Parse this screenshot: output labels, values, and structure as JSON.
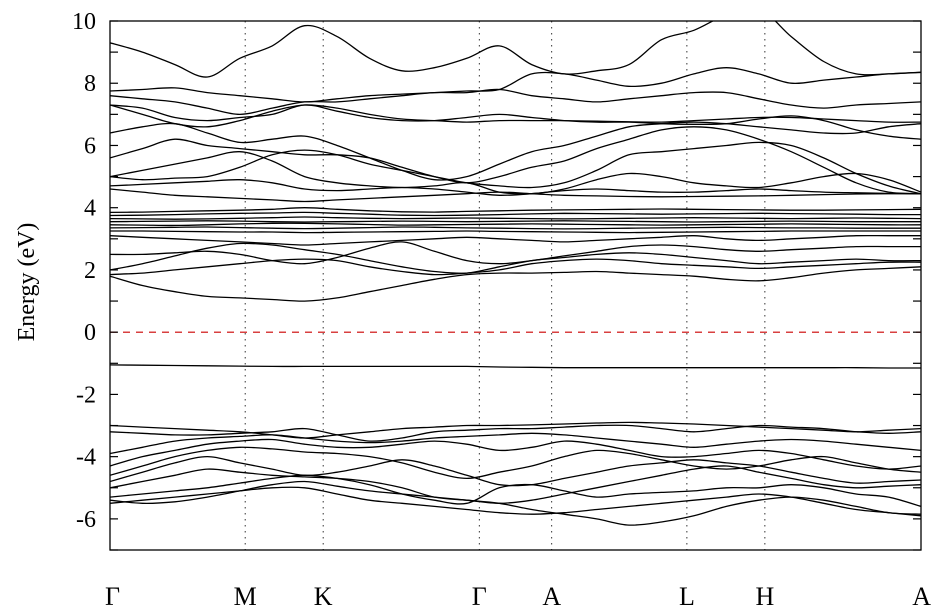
{
  "chart_data": {
    "type": "line",
    "title": "",
    "ylabel": "Energy (eV)",
    "xlabel": "",
    "ylim": [
      -7,
      10
    ],
    "yticks": [
      10,
      8,
      6,
      4,
      2,
      0,
      -2,
      -4,
      -6
    ],
    "ytick_labels": [
      "10",
      "8",
      "6",
      "4",
      "2",
      "0",
      "-2",
      "-4",
      "-6"
    ],
    "kpoints": [
      {
        "label": "Γ",
        "x": 0
      },
      {
        "label": "M",
        "x": 1.0
      },
      {
        "label": "K",
        "x": 1.577
      },
      {
        "label": "Γ",
        "x": 2.732
      },
      {
        "label": "A",
        "x": 3.268
      },
      {
        "label": "L",
        "x": 4.268
      },
      {
        "label": "H",
        "x": 4.845
      },
      {
        "label": "A",
        "x": 6.0
      }
    ],
    "fermi_level": 0,
    "fermi_color": "#cc0000",
    "line_color": "#000000",
    "grid": "dotted vertical lines at high-symmetry points",
    "series": [
      {
        "values": [
          -5.5,
          -5.4,
          -5.3,
          -5.2,
          -5.1,
          -5.0,
          -5.0,
          -5.2,
          -5.4,
          -5.5,
          -5.6,
          -5.7,
          -5.8,
          -5.85,
          -5.8,
          -5.7,
          -5.6,
          -5.5,
          -5.4,
          -5.3,
          -5.2,
          -5.3,
          -5.5,
          -5.7,
          -5.8,
          -5.9
        ]
      },
      {
        "values": [
          -5.4,
          -5.5,
          -5.45,
          -5.3,
          -5.1,
          -4.9,
          -4.8,
          -4.95,
          -5.1,
          -5.2,
          -5.3,
          -5.4,
          -5.5,
          -5.7,
          -5.85,
          -6.0,
          -6.2,
          -6.1,
          -5.9,
          -5.6,
          -5.4,
          -5.3,
          -5.4,
          -5.6,
          -5.8,
          -5.85
        ]
      },
      {
        "values": [
          -5.3,
          -5.2,
          -5.1,
          -5.0,
          -4.85,
          -4.7,
          -4.6,
          -4.7,
          -4.9,
          -5.2,
          -5.4,
          -5.5,
          -5.0,
          -4.9,
          -5.1,
          -5.3,
          -5.2,
          -5.15,
          -5.1,
          -5.0,
          -5.0,
          -4.9,
          -5.0,
          -5.2,
          -5.3,
          -5.6
        ]
      },
      {
        "values": [
          -5.0,
          -4.8,
          -4.6,
          -4.4,
          -4.5,
          -4.6,
          -4.65,
          -4.7,
          -4.8,
          -5.0,
          -5.3,
          -5.4,
          -5.5,
          -5.4,
          -5.2,
          -5.0,
          -4.8,
          -4.6,
          -4.4,
          -4.3,
          -4.5,
          -4.7,
          -4.9,
          -5.0,
          -4.95,
          -4.9
        ]
      },
      {
        "values": [
          -4.8,
          -4.5,
          -4.2,
          -4.0,
          -4.2,
          -4.4,
          -4.6,
          -4.5,
          -4.3,
          -4.1,
          -4.3,
          -4.6,
          -4.9,
          -4.9,
          -4.7,
          -4.5,
          -4.3,
          -4.2,
          -4.1,
          -4.2,
          -4.3,
          -4.5,
          -4.7,
          -4.85,
          -4.8,
          -4.75
        ]
      },
      {
        "values": [
          -4.6,
          -4.3,
          -4.0,
          -3.8,
          -3.7,
          -3.75,
          -3.85,
          -3.9,
          -4.0,
          -4.2,
          -4.5,
          -4.7,
          -4.5,
          -4.3,
          -4.0,
          -3.8,
          -3.9,
          -4.1,
          -4.3,
          -4.4,
          -4.3,
          -4.1,
          -4.0,
          -4.2,
          -4.4,
          -4.5
        ]
      },
      {
        "values": [
          -4.3,
          -4.0,
          -3.8,
          -3.6,
          -3.5,
          -3.45,
          -3.6,
          -3.7,
          -3.7,
          -3.6,
          -3.5,
          -3.6,
          -3.8,
          -3.7,
          -3.5,
          -3.6,
          -3.8,
          -4.0,
          -4.0,
          -3.9,
          -3.8,
          -3.9,
          -4.1,
          -4.3,
          -4.4,
          -4.3
        ]
      },
      {
        "values": [
          -3.9,
          -3.7,
          -3.5,
          -3.4,
          -3.35,
          -3.3,
          -3.4,
          -3.5,
          -3.55,
          -3.5,
          -3.4,
          -3.35,
          -3.3,
          -3.25,
          -3.3,
          -3.4,
          -3.5,
          -3.6,
          -3.7,
          -3.6,
          -3.5,
          -3.45,
          -3.5,
          -3.6,
          -3.7,
          -3.8
        ]
      },
      {
        "values": [
          -3.2,
          -3.25,
          -3.3,
          -3.3,
          -3.25,
          -3.2,
          -3.1,
          -3.3,
          -3.5,
          -3.4,
          -3.2,
          -3.15,
          -3.1,
          -3.1,
          -3.05,
          -3.0,
          -3.0,
          -3.1,
          -3.2,
          -3.1,
          -3.0,
          -3.05,
          -3.1,
          -3.2,
          -3.25,
          -3.2
        ]
      },
      {
        "values": [
          -3.0,
          -3.05,
          -3.1,
          -3.15,
          -3.2,
          -3.3,
          -3.4,
          -3.3,
          -3.2,
          -3.1,
          -3.05,
          -3.0,
          -3.0,
          -2.98,
          -2.95,
          -2.92,
          -2.9,
          -2.92,
          -2.95,
          -3.0,
          -3.05,
          -3.1,
          -3.15,
          -3.2,
          -3.15,
          -3.1
        ]
      },
      {
        "values": [
          -1.05,
          -1.06,
          -1.07,
          -1.08,
          -1.09,
          -1.1,
          -1.1,
          -1.1,
          -1.1,
          -1.1,
          -1.1,
          -1.1,
          -1.12,
          -1.13,
          -1.14,
          -1.14,
          -1.14,
          -1.14,
          -1.14,
          -1.14,
          -1.14,
          -1.14,
          -1.14,
          -1.14,
          -1.15,
          -1.15
        ]
      },
      {
        "values": [
          1.8,
          1.5,
          1.3,
          1.15,
          1.1,
          1.05,
          1.0,
          1.1,
          1.3,
          1.5,
          1.7,
          1.85,
          1.9,
          1.9,
          1.92,
          1.95,
          1.9,
          1.85,
          1.8,
          1.7,
          1.65,
          1.75,
          1.9,
          2.0,
          2.05,
          2.1
        ]
      },
      {
        "values": [
          1.85,
          1.9,
          2.0,
          2.1,
          2.2,
          2.3,
          2.35,
          2.3,
          2.1,
          1.95,
          1.85,
          1.9,
          2.0,
          2.2,
          2.3,
          2.35,
          2.3,
          2.2,
          2.15,
          2.1,
          2.05,
          2.1,
          2.15,
          2.2,
          2.25,
          2.25
        ]
      },
      {
        "values": [
          2.0,
          2.2,
          2.45,
          2.7,
          2.85,
          2.8,
          2.65,
          2.5,
          2.3,
          2.1,
          1.95,
          1.9,
          2.1,
          2.3,
          2.4,
          2.5,
          2.55,
          2.5,
          2.4,
          2.3,
          2.2,
          2.25,
          2.3,
          2.35,
          2.3,
          2.3
        ]
      },
      {
        "values": [
          2.5,
          2.5,
          2.55,
          2.6,
          2.5,
          2.3,
          2.2,
          2.4,
          2.7,
          2.9,
          2.6,
          2.3,
          2.2,
          2.3,
          2.45,
          2.6,
          2.75,
          2.8,
          2.75,
          2.65,
          2.6,
          2.65,
          2.7,
          2.75,
          2.75,
          2.75
        ]
      },
      {
        "values": [
          3.1,
          3.05,
          3.0,
          2.95,
          2.9,
          2.85,
          2.8,
          2.85,
          2.9,
          2.95,
          3.0,
          3.05,
          3.0,
          2.95,
          2.9,
          2.95,
          3.0,
          3.05,
          3.1,
          3.0,
          2.95,
          3.0,
          3.05,
          3.1,
          3.1,
          3.1
        ]
      },
      {
        "values": [
          3.25,
          3.25,
          3.24,
          3.23,
          3.22,
          3.22,
          3.2,
          3.21,
          3.22,
          3.23,
          3.24,
          3.25,
          3.24,
          3.23,
          3.22,
          3.21,
          3.2,
          3.21,
          3.22,
          3.23,
          3.24,
          3.25,
          3.25,
          3.25,
          3.25,
          3.25
        ]
      },
      {
        "values": [
          3.35,
          3.36,
          3.37,
          3.38,
          3.36,
          3.34,
          3.33,
          3.34,
          3.36,
          3.38,
          3.37,
          3.35,
          3.34,
          3.33,
          3.32,
          3.33,
          3.34,
          3.35,
          3.36,
          3.37,
          3.36,
          3.35,
          3.35,
          3.34,
          3.34,
          3.34
        ]
      },
      {
        "values": [
          3.45,
          3.44,
          3.43,
          3.45,
          3.48,
          3.5,
          3.5,
          3.48,
          3.46,
          3.44,
          3.45,
          3.46,
          3.47,
          3.48,
          3.47,
          3.46,
          3.45,
          3.44,
          3.45,
          3.46,
          3.47,
          3.48,
          3.47,
          3.46,
          3.45,
          3.45
        ]
      },
      {
        "values": [
          3.55,
          3.56,
          3.57,
          3.58,
          3.57,
          3.55,
          3.54,
          3.55,
          3.56,
          3.57,
          3.56,
          3.55,
          3.56,
          3.57,
          3.58,
          3.57,
          3.56,
          3.55,
          3.54,
          3.55,
          3.56,
          3.57,
          3.56,
          3.55,
          3.55,
          3.55
        ]
      },
      {
        "values": [
          3.65,
          3.64,
          3.63,
          3.64,
          3.66,
          3.68,
          3.7,
          3.68,
          3.66,
          3.65,
          3.66,
          3.67,
          3.66,
          3.65,
          3.64,
          3.65,
          3.66,
          3.67,
          3.68,
          3.67,
          3.66,
          3.65,
          3.66,
          3.67,
          3.66,
          3.65
        ]
      },
      {
        "values": [
          3.75,
          3.76,
          3.78,
          3.8,
          3.82,
          3.83,
          3.85,
          3.82,
          3.79,
          3.76,
          3.75,
          3.76,
          3.78,
          3.8,
          3.82,
          3.81,
          3.8,
          3.79,
          3.8,
          3.81,
          3.82,
          3.81,
          3.8,
          3.79,
          3.78,
          3.78
        ]
      },
      {
        "values": [
          3.85,
          3.86,
          3.88,
          3.9,
          3.92,
          3.95,
          4.0,
          3.95,
          3.9,
          3.87,
          3.86,
          3.88,
          3.9,
          3.92,
          3.93,
          3.94,
          3.95,
          3.96,
          3.95,
          3.94,
          3.93,
          3.92,
          3.92,
          3.93,
          3.94,
          3.95
        ]
      },
      {
        "values": [
          4.6,
          4.5,
          4.4,
          4.35,
          4.3,
          4.25,
          4.2,
          4.25,
          4.3,
          4.35,
          4.4,
          4.45,
          4.5,
          4.45,
          4.4,
          4.38,
          4.36,
          4.35,
          4.36,
          4.37,
          4.38,
          4.4,
          4.42,
          4.44,
          4.45,
          4.45
        ]
      },
      {
        "values": [
          4.7,
          4.75,
          4.8,
          4.85,
          4.9,
          4.8,
          4.6,
          4.55,
          4.6,
          4.65,
          4.6,
          4.5,
          4.4,
          4.45,
          4.55,
          4.6,
          4.55,
          4.5,
          4.5,
          4.55,
          4.6,
          4.55,
          4.5,
          4.48,
          4.46,
          4.45
        ]
      },
      {
        "values": [
          5.0,
          5.2,
          5.4,
          5.6,
          5.8,
          5.5,
          5.0,
          4.8,
          4.7,
          4.65,
          4.7,
          4.8,
          4.5,
          4.45,
          4.6,
          4.9,
          5.1,
          5.0,
          4.8,
          4.7,
          4.65,
          4.8,
          5.0,
          5.1,
          4.9,
          4.5
        ]
      },
      {
        "values": [
          5.0,
          4.9,
          4.95,
          5.0,
          5.3,
          5.7,
          5.85,
          5.7,
          5.4,
          5.2,
          5.0,
          4.8,
          4.7,
          4.65,
          4.8,
          5.2,
          5.7,
          5.8,
          5.9,
          6.0,
          6.1,
          6.0,
          5.6,
          5.1,
          4.7,
          4.45
        ]
      },
      {
        "values": [
          5.6,
          5.9,
          6.2,
          6.0,
          5.9,
          5.8,
          5.7,
          5.7,
          5.6,
          5.3,
          5.0,
          4.8,
          5.0,
          5.3,
          5.5,
          5.9,
          6.2,
          6.5,
          6.6,
          6.5,
          6.2,
          5.8,
          5.3,
          4.8,
          4.5,
          4.45
        ]
      },
      {
        "values": [
          6.4,
          6.6,
          6.7,
          6.4,
          6.1,
          6.2,
          6.3,
          6.0,
          5.6,
          5.2,
          4.9,
          5.0,
          5.4,
          5.8,
          6.0,
          6.3,
          6.6,
          6.7,
          6.75,
          6.7,
          6.6,
          6.5,
          6.4,
          6.4,
          6.6,
          6.7
        ]
      },
      {
        "values": [
          7.3,
          7.0,
          6.7,
          6.6,
          6.8,
          7.1,
          7.3,
          7.2,
          7.0,
          6.85,
          6.8,
          6.75,
          6.8,
          6.8,
          6.8,
          6.78,
          6.76,
          6.75,
          6.8,
          6.85,
          6.9,
          6.9,
          6.85,
          6.8,
          6.75,
          6.75
        ]
      },
      {
        "values": [
          7.3,
          7.2,
          6.9,
          6.8,
          6.9,
          7.0,
          7.3,
          7.1,
          6.9,
          6.8,
          6.8,
          6.9,
          7.0,
          6.9,
          6.8,
          6.75,
          6.75,
          6.7,
          6.68,
          6.7,
          6.85,
          6.95,
          6.8,
          6.5,
          6.3,
          6.2
        ]
      },
      {
        "values": [
          7.6,
          7.5,
          7.4,
          7.2,
          7.0,
          7.2,
          7.4,
          7.4,
          7.5,
          7.6,
          7.7,
          7.7,
          7.8,
          7.6,
          7.5,
          7.4,
          7.5,
          7.6,
          7.7,
          7.7,
          7.5,
          7.3,
          7.2,
          7.3,
          7.35,
          7.4
        ]
      },
      {
        "values": [
          7.75,
          7.8,
          7.85,
          7.7,
          7.6,
          7.5,
          7.4,
          7.5,
          7.6,
          7.65,
          7.7,
          7.75,
          7.8,
          8.3,
          8.3,
          8.1,
          7.9,
          8.0,
          8.3,
          8.5,
          8.3,
          8.0,
          8.1,
          8.2,
          8.3,
          8.35
        ]
      },
      {
        "values": [
          9.3,
          9.0,
          8.6,
          8.2,
          8.8,
          9.2,
          9.85,
          9.5,
          8.8,
          8.4,
          8.5,
          8.8,
          9.2,
          8.6,
          8.3,
          8.4,
          8.6,
          9.4,
          9.7,
          10.2,
          10.4,
          9.5,
          8.7,
          8.3,
          8.3,
          8.35
        ]
      }
    ]
  }
}
